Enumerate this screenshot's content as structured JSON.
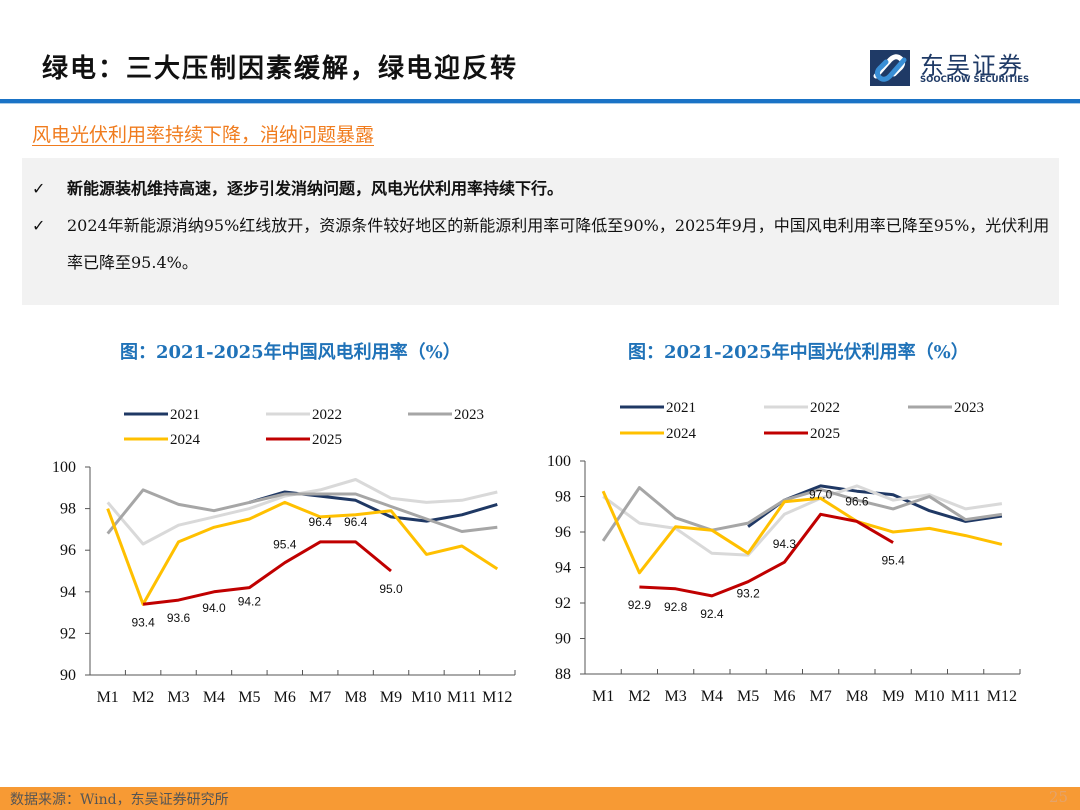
{
  "header": {
    "title": "绿电：三大压制因素缓解，绿电迎反转",
    "logo_cn": "东吴证券",
    "logo_en": "SOOCHOW SECURITIES",
    "brand_color": "#1f3a66",
    "rule_color": "#1a73c6"
  },
  "section": {
    "subheading": "风电光伏利用率持续下降，消纳问题暴露",
    "bullets": [
      {
        "mark": "✓",
        "text": "新能源装机维持高速，逐步引发消纳问题，风电光伏利用率持续下行。"
      },
      {
        "mark": "✓",
        "text": "2024年新能源消纳95%红线放开，资源条件较好地区的新能源利用率可降低至90%，2025年9月，中国风电利用率已降至95%，光伏利用率已降至95.4%。"
      }
    ]
  },
  "footer": {
    "source": "数据来源：Wind，东吴证券研究所",
    "page": "25"
  },
  "chart_data": [
    {
      "type": "line",
      "title": "图：2021-2025年中国风电利用率（%）",
      "xlabel": "",
      "ylabel": "",
      "ylim": [
        90,
        100
      ],
      "yticks": [
        90,
        92,
        94,
        96,
        98,
        100
      ],
      "grid": false,
      "legend": "top",
      "categories": [
        "M1",
        "M2",
        "M3",
        "M4",
        "M5",
        "M6",
        "M7",
        "M8",
        "M9",
        "M10",
        "M11",
        "M12"
      ],
      "series": [
        {
          "name": "2021",
          "color": "#1f3864",
          "values": [
            null,
            null,
            null,
            null,
            98.3,
            98.8,
            98.6,
            98.4,
            97.6,
            97.4,
            97.7,
            98.2
          ]
        },
        {
          "name": "2022",
          "color": "#d9d9d9",
          "values": [
            98.3,
            96.3,
            97.2,
            97.6,
            98.0,
            98.6,
            98.9,
            99.4,
            98.5,
            98.3,
            98.4,
            98.8
          ]
        },
        {
          "name": "2023",
          "color": "#a6a6a6",
          "values": [
            96.8,
            98.9,
            98.2,
            97.9,
            98.3,
            98.7,
            98.7,
            98.7,
            98.1,
            97.5,
            96.9,
            97.1
          ]
        },
        {
          "name": "2024",
          "color": "#ffc000",
          "values": [
            98.0,
            93.4,
            96.4,
            97.1,
            97.5,
            98.3,
            97.6,
            97.7,
            97.9,
            95.8,
            96.2,
            95.1
          ]
        },
        {
          "name": "2025",
          "color": "#c00000",
          "values": [
            null,
            93.4,
            93.6,
            94.0,
            94.2,
            95.4,
            96.4,
            96.4,
            95.0,
            null,
            null,
            null
          ],
          "labels": true
        }
      ]
    },
    {
      "type": "line",
      "title": "图：2021-2025年中国光伏利用率（%）",
      "xlabel": "",
      "ylabel": "",
      "ylim": [
        88,
        100
      ],
      "yticks": [
        88,
        90,
        92,
        94,
        96,
        98,
        100
      ],
      "grid": false,
      "legend": "top",
      "categories": [
        "M1",
        "M2",
        "M3",
        "M4",
        "M5",
        "M6",
        "M7",
        "M8",
        "M9",
        "M10",
        "M11",
        "M12"
      ],
      "series": [
        {
          "name": "2021",
          "color": "#1f3864",
          "values": [
            null,
            null,
            null,
            null,
            96.3,
            97.8,
            98.6,
            98.3,
            98.1,
            97.2,
            96.6,
            96.9
          ]
        },
        {
          "name": "2022",
          "color": "#d9d9d9",
          "values": [
            98.0,
            96.5,
            96.2,
            94.8,
            94.7,
            97.0,
            97.9,
            98.6,
            97.8,
            98.1,
            97.3,
            97.6
          ]
        },
        {
          "name": "2023",
          "color": "#a6a6a6",
          "values": [
            95.5,
            98.5,
            96.8,
            96.1,
            96.5,
            97.8,
            98.4,
            97.8,
            97.3,
            98.0,
            96.7,
            97.0
          ]
        },
        {
          "name": "2024",
          "color": "#ffc000",
          "values": [
            98.3,
            93.7,
            96.3,
            96.1,
            94.8,
            97.7,
            97.9,
            96.6,
            96.0,
            96.2,
            95.8,
            95.3
          ]
        },
        {
          "name": "2025",
          "color": "#c00000",
          "values": [
            null,
            92.9,
            92.8,
            92.4,
            93.2,
            94.3,
            97.0,
            96.6,
            95.4,
            null,
            null,
            null
          ],
          "labels": true
        }
      ]
    }
  ]
}
